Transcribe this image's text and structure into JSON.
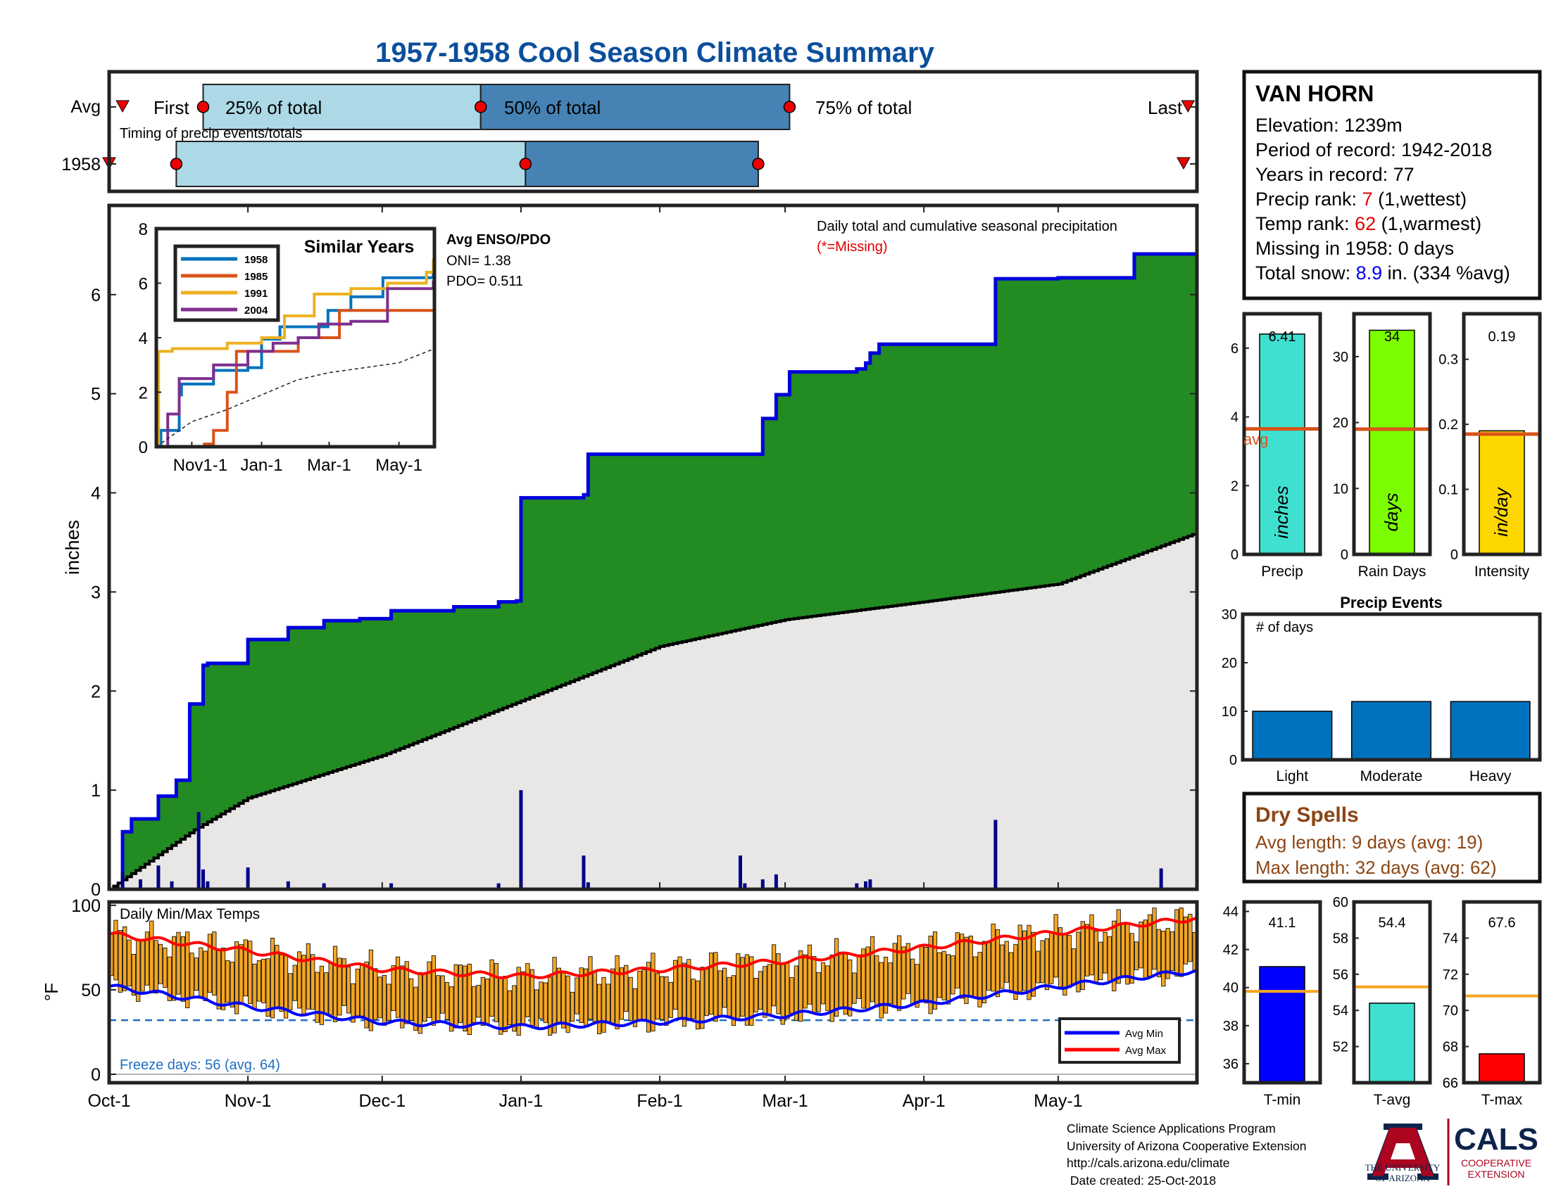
{
  "title": "1957-1958 Cool Season Climate Summary",
  "timing": {
    "row_labels": [
      "Avg",
      "1958"
    ],
    "avg_labels": [
      "First",
      "25% of total",
      "50% of total",
      "75% of total",
      "Last"
    ],
    "caption": "Timing of precip events/totals",
    "avg_dates": [
      "1957-10-04",
      "1957-10-22",
      "1957-12-23",
      "1958-03-02",
      "1958-05-30"
    ],
    "year_dates": [
      "1957-10-01",
      "1957-10-16",
      "1958-01-02",
      "1958-02-23",
      "1958-05-29"
    ]
  },
  "station": {
    "name": "VAN HORN",
    "elevation_label": "Elevation: 1239m",
    "period_label": "Period of record: 1942-2018",
    "years_label": "Years in record: 77",
    "precip_rank_prefix": "Precip rank: ",
    "precip_rank": "7",
    "precip_rank_suffix": " (1,wettest)",
    "temp_rank_prefix": "Temp rank: ",
    "temp_rank": "62",
    "temp_rank_suffix": " (1,warmest)",
    "missing_label": "Missing in 1958: 0 days",
    "snow_prefix": "Total snow: ",
    "snow_value": "8.9",
    "snow_suffix": " in. (334 %avg)"
  },
  "main_plot": {
    "ylabel": "inches",
    "note": "Daily total and cumulative seasonal precipitation",
    "missing_note": "(*=Missing)",
    "x_ticks": [
      "Oct-1",
      "Nov-1",
      "Dec-1",
      "Jan-1",
      "Feb-1",
      "Mar-1",
      "Apr-1",
      "May-1"
    ],
    "y_ticks": [
      "0",
      "1",
      "2",
      "3",
      "4",
      "5",
      "6"
    ],
    "enso_title": "Avg ENSO/PDO",
    "oni_label": "ONI= 1.38",
    "pdo_label": "PDO= 0.511"
  },
  "inset": {
    "title": "Similar Years",
    "legend": [
      "1958",
      "1985",
      "1991",
      "2004"
    ],
    "x_ticks": [
      "Nov1-1",
      "Jan-1",
      "Mar-1",
      "May-1"
    ],
    "y_ticks": [
      "0",
      "2",
      "4",
      "6",
      "8"
    ]
  },
  "bar_panels": [
    {
      "xlabel": "Precip",
      "unit": "inches",
      "value_label": "6.41",
      "avg_label": "avg"
    },
    {
      "xlabel": "Rain Days",
      "unit": "days",
      "value_label": "34"
    },
    {
      "xlabel": "Intensity",
      "unit": "in/day",
      "value_label": "0.19"
    }
  ],
  "events": {
    "title": "Precip Events",
    "ylabel": "# of days",
    "categories": [
      "Light",
      "Moderate",
      "Heavy"
    ]
  },
  "dry_spells": {
    "title": "Dry Spells",
    "avg_line": "Avg length: 9 days (avg: 19)",
    "max_line": "Max length: 32 days (avg: 62)"
  },
  "temp_plot": {
    "title": "Daily Min/Max Temps",
    "ylabel": "°F",
    "freeze_label": "Freeze days: 56 (avg. 64)",
    "legend": [
      "Avg Min",
      "Avg Max"
    ]
  },
  "temp_bars": [
    {
      "xlabel": "T-min",
      "value_label": "41.1"
    },
    {
      "xlabel": "T-avg",
      "value_label": "54.4"
    },
    {
      "xlabel": "T-max",
      "value_label": "67.6"
    }
  ],
  "footer": {
    "line1": "Climate Science Applications Program",
    "line2": "University of Arizona Cooperative Extension",
    "line3": "http://cals.arizona.edu/climate",
    "line4": " Date created: 25-Oct-2018"
  },
  "logos": {
    "ua_line1": "THE UNIVERSITY",
    "ua_line2": "OF ARIZONA",
    "cals": "CALS",
    "coop1": "COOPERATIVE",
    "coop2": "EXTENSION"
  },
  "colors": {
    "title": "#0b4f9c",
    "cum_fill": "#228b22",
    "cum_line": "#0000dd",
    "avg_fill": "#e8e7e6",
    "daily_bar": "#00008b",
    "light_box": "#add8e6",
    "dark_box": "#4682b4",
    "rank_red": "#e00000",
    "snow_blue": "#0000ee",
    "dry_brown": "#8b4513",
    "temp_bar": "#f5a623",
    "avg_max": "#ff0000",
    "avg_min": "#0000ff"
  },
  "chart_data": [
    {
      "type": "area",
      "title": "Daily total and cumulative seasonal precipitation",
      "ylabel": "inches",
      "ylim": [
        0,
        6.9
      ],
      "x_range": [
        "1957-10-01",
        "1958-05-31"
      ],
      "series": [
        {
          "name": "1958",
          "kind": "cumulative",
          "x": [
            "1957-10-01",
            "1957-10-04",
            "1957-10-06",
            "1957-10-12",
            "1957-10-16",
            "1957-10-19",
            "1957-10-22",
            "1957-10-23",
            "1957-11-01",
            "1957-11-10",
            "1957-11-18",
            "1957-11-26",
            "1957-12-03",
            "1957-12-17",
            "1957-12-27",
            "1957-12-31",
            "1958-01-01",
            "1958-01-15",
            "1958-01-16",
            "1958-02-19",
            "1958-02-24",
            "1958-02-27",
            "1958-03-02",
            "1958-03-17",
            "1958-03-19",
            "1958-03-20",
            "1958-03-22",
            "1958-04-17",
            "1958-05-01",
            "1958-05-18",
            "1958-05-31"
          ],
          "y": [
            0.0,
            0.58,
            0.71,
            0.94,
            1.1,
            1.87,
            2.26,
            2.28,
            2.52,
            2.64,
            2.71,
            2.73,
            2.81,
            2.85,
            2.9,
            2.91,
            3.95,
            3.98,
            4.39,
            4.39,
            4.75,
            4.99,
            5.22,
            5.25,
            5.31,
            5.41,
            5.5,
            6.16,
            6.17,
            6.41,
            6.41
          ]
        },
        {
          "name": "Avg",
          "kind": "cumulative",
          "x": [
            "1957-10-01",
            "1957-10-20",
            "1957-11-01",
            "1957-12-01",
            "1958-01-01",
            "1958-02-01",
            "1958-03-01",
            "1958-04-01",
            "1958-05-01",
            "1958-05-31"
          ],
          "y": [
            0.0,
            0.6,
            0.92,
            1.35,
            1.9,
            2.45,
            2.72,
            2.9,
            3.08,
            3.58
          ]
        }
      ],
      "daily_bars": {
        "x": [
          "1957-10-04",
          "1957-10-08",
          "1957-10-12",
          "1957-10-15",
          "1957-10-21",
          "1957-10-22",
          "1957-10-23",
          "1957-11-01",
          "1957-11-10",
          "1957-11-18",
          "1957-12-03",
          "1957-12-27",
          "1958-01-01",
          "1958-01-15",
          "1958-01-16",
          "1958-02-19",
          "1958-02-20",
          "1958-02-24",
          "1958-02-27",
          "1958-03-17",
          "1958-03-19",
          "1958-03-20",
          "1958-04-17",
          "1958-05-24"
        ],
        "y": [
          0.18,
          0.1,
          0.24,
          0.08,
          0.78,
          0.2,
          0.08,
          0.22,
          0.08,
          0.06,
          0.06,
          0.06,
          1.0,
          0.34,
          0.07,
          0.34,
          0.06,
          0.1,
          0.15,
          0.06,
          0.08,
          0.1,
          0.7,
          0.21
        ]
      }
    },
    {
      "type": "line",
      "title": "Similar Years",
      "ylim": [
        0,
        8
      ],
      "x_range": [
        "1957-10-01",
        "1958-05-31"
      ],
      "series": [
        {
          "name": "1958",
          "x": [
            "1957-10-01",
            "1957-10-04",
            "1957-10-20",
            "1957-10-22",
            "1957-11-20",
            "1957-12-20",
            "1958-01-01",
            "1958-01-16",
            "1958-02-27",
            "1958-03-20",
            "1958-04-17",
            "1958-05-31"
          ],
          "y": [
            0,
            0.6,
            1.9,
            2.3,
            2.8,
            2.9,
            3.95,
            4.4,
            5.0,
            5.5,
            6.2,
            6.41
          ]
        },
        {
          "name": "1985",
          "x": [
            "1957-10-01",
            "1957-11-01",
            "1957-11-12",
            "1957-11-20",
            "1957-12-01",
            "1957-12-10",
            "1958-02-01",
            "1958-03-10",
            "1958-05-31"
          ],
          "y": [
            0,
            0,
            0.1,
            0.6,
            2.0,
            3.5,
            4.0,
            5.0,
            5.0
          ]
        },
        {
          "name": "1991",
          "x": [
            "1957-10-01",
            "1957-10-03",
            "1957-10-15",
            "1957-12-01",
            "1958-01-01",
            "1958-01-20",
            "1958-02-15",
            "1958-03-20",
            "1958-04-20",
            "1958-05-25",
            "1958-05-31"
          ],
          "y": [
            0,
            3.5,
            3.6,
            3.8,
            4.0,
            4.8,
            5.6,
            5.8,
            6.0,
            6.4,
            6.9
          ]
        },
        {
          "name": "2004",
          "x": [
            "1957-10-01",
            "1957-10-10",
            "1957-10-20",
            "1957-11-20",
            "1957-12-20",
            "1958-01-10",
            "1958-02-01",
            "1958-02-20",
            "1958-03-20",
            "1958-04-20",
            "1958-05-31"
          ],
          "y": [
            0,
            1.2,
            2.5,
            3.0,
            3.5,
            3.8,
            4.0,
            4.5,
            4.6,
            5.8,
            6.1
          ]
        },
        {
          "name": "Avg",
          "x": [
            "1957-10-01",
            "1957-11-01",
            "1957-12-01",
            "1958-01-01",
            "1958-02-01",
            "1958-03-01",
            "1958-04-01",
            "1958-05-01",
            "1958-05-31"
          ],
          "y": [
            0,
            0.92,
            1.35,
            1.9,
            2.45,
            2.72,
            2.9,
            3.08,
            3.58
          ]
        }
      ]
    },
    {
      "type": "bar",
      "title": "Precip",
      "categories": [
        "Precip"
      ],
      "values": [
        6.41
      ],
      "avg": 3.65,
      "ylim": [
        0,
        7.0
      ]
    },
    {
      "type": "bar",
      "title": "Rain Days",
      "categories": [
        "Rain Days"
      ],
      "values": [
        34
      ],
      "avg": 19,
      "ylim": [
        0,
        36.5
      ]
    },
    {
      "type": "bar",
      "title": "Intensity",
      "categories": [
        "Intensity"
      ],
      "values": [
        0.19
      ],
      "avg": 0.185,
      "ylim": [
        0,
        0.37
      ]
    },
    {
      "type": "bar",
      "title": "Precip Events",
      "categories": [
        "Light",
        "Moderate",
        "Heavy"
      ],
      "values": [
        10,
        12,
        12
      ],
      "ylim": [
        0,
        30
      ]
    },
    {
      "type": "bar",
      "title": "Daily Min/Max Temps",
      "ylabel": "°F",
      "ylim": [
        -5,
        102
      ],
      "x_range": [
        "1957-10-01",
        "1958-05-31"
      ],
      "freeze_line": 32,
      "series": [
        {
          "name": "Avg Max",
          "x": [
            "1957-10-01",
            "1957-11-01",
            "1957-12-01",
            "1958-01-01",
            "1958-02-01",
            "1958-03-01",
            "1958-04-01",
            "1958-05-01",
            "1958-05-31"
          ],
          "y": [
            83,
            73,
            62,
            58,
            62,
            67,
            75,
            84,
            92
          ]
        },
        {
          "name": "Avg Min",
          "x": [
            "1957-10-01",
            "1957-11-01",
            "1957-12-01",
            "1958-01-01",
            "1958-02-01",
            "1958-03-01",
            "1958-04-01",
            "1958-05-01",
            "1958-05-31"
          ],
          "y": [
            52,
            40,
            31,
            28,
            31,
            35,
            42,
            52,
            61
          ]
        }
      ]
    },
    {
      "type": "bar",
      "title": "T-min",
      "categories": [
        "T-min"
      ],
      "values": [
        41.1
      ],
      "avg": 39.8,
      "ylim": [
        35,
        44.5
      ]
    },
    {
      "type": "bar",
      "title": "T-avg",
      "categories": [
        "T-avg"
      ],
      "values": [
        54.4
      ],
      "avg": 55.3,
      "ylim": [
        50,
        60
      ]
    },
    {
      "type": "bar",
      "title": "T-max",
      "categories": [
        "T-max"
      ],
      "values": [
        67.6
      ],
      "avg": 70.8,
      "ylim": [
        66,
        76
      ]
    }
  ]
}
